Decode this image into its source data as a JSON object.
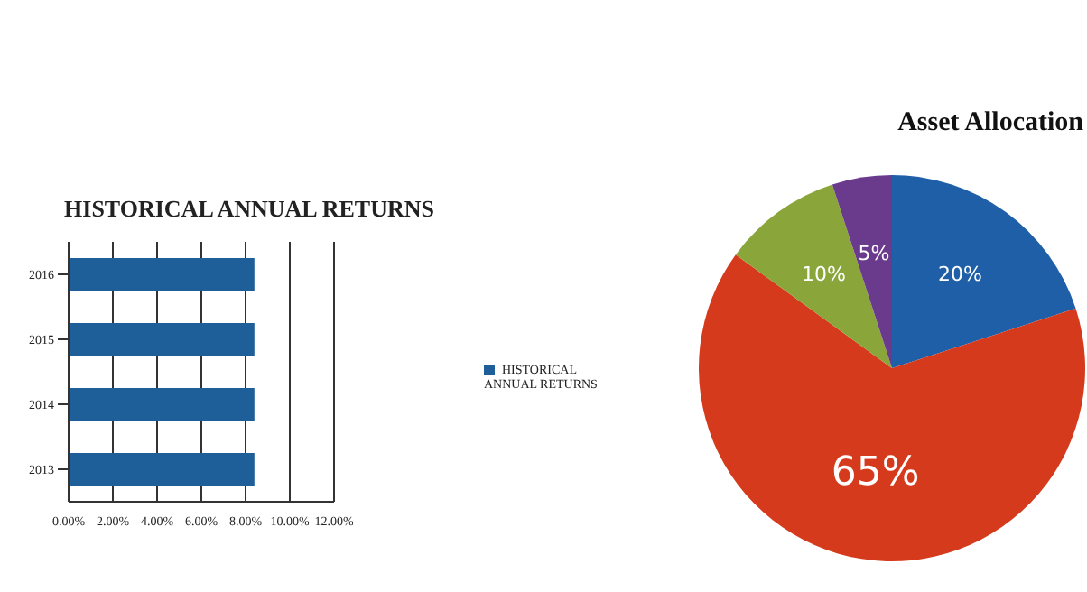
{
  "chart_data": [
    {
      "type": "bar",
      "title": "HISTORICAL ANNUAL RETURNS",
      "orientation": "horizontal",
      "categories": [
        "2016",
        "2015",
        "2014",
        "2013"
      ],
      "series": [
        {
          "name": "HISTORICAL ANNUAL RETURNS",
          "color": "#1f5f99",
          "values": [
            8.4,
            8.4,
            8.4,
            8.4
          ]
        }
      ],
      "xlim": [
        0,
        12
      ],
      "xticks": [
        {
          "value": 0,
          "label": "0.00%"
        },
        {
          "value": 2,
          "label": "2.00%"
        },
        {
          "value": 4,
          "label": "4.00%"
        },
        {
          "value": 6,
          "label": "6.00%"
        },
        {
          "value": 8,
          "label": "8.00%"
        },
        {
          "value": 10,
          "label": "10.00%"
        },
        {
          "value": 12,
          "label": "12.00%"
        }
      ],
      "grid": "x",
      "legend": "right"
    },
    {
      "type": "pie",
      "title": "Asset Allocation",
      "categories": [
        null,
        null,
        null,
        null
      ],
      "values": [
        20,
        65,
        10,
        5
      ],
      "colors": [
        "#1e5fa8",
        "#d63a1c",
        "#8aa63a",
        "#6a3a8c"
      ],
      "value_labels": [
        "20%",
        "65%",
        "10%",
        "5%"
      ]
    }
  ]
}
